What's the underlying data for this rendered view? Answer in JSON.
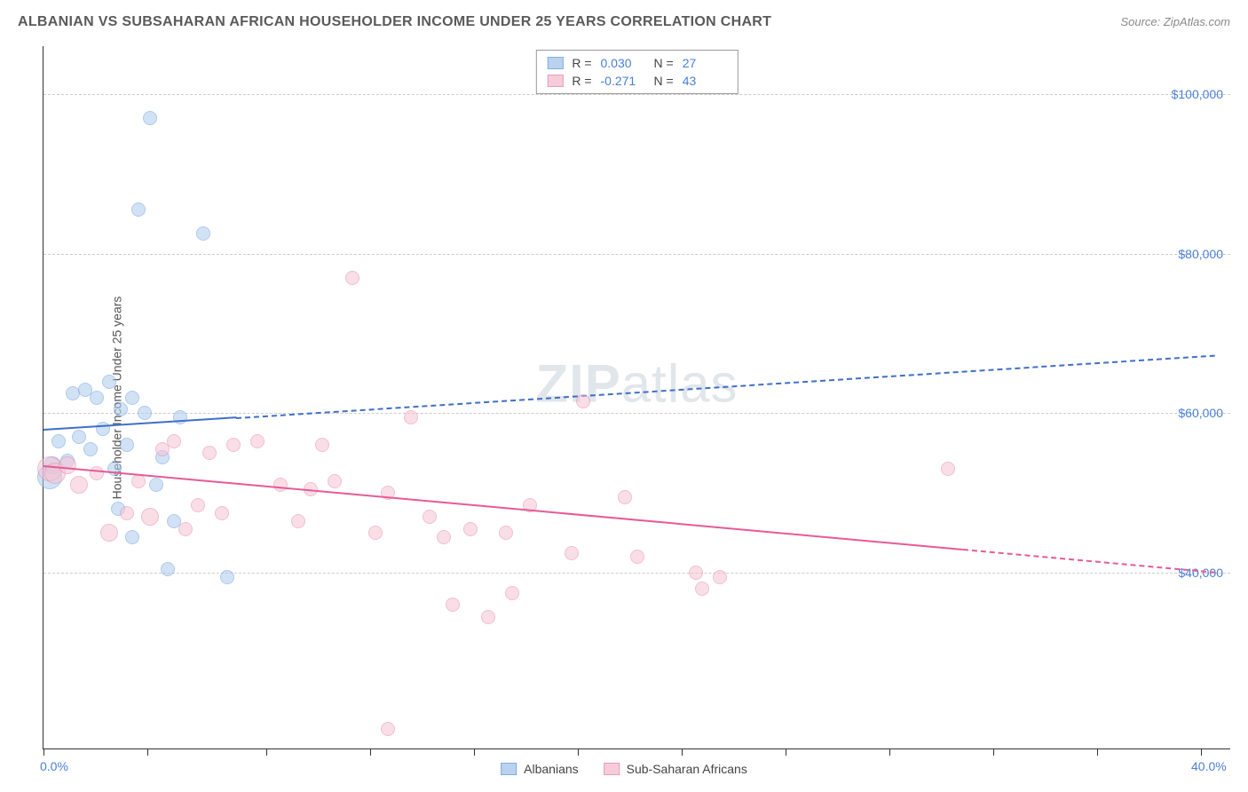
{
  "header": {
    "title": "ALBANIAN VS SUBSAHARAN AFRICAN HOUSEHOLDER INCOME UNDER 25 YEARS CORRELATION CHART",
    "source_label": "Source: ZipAtlas.com"
  },
  "chart": {
    "type": "scatter",
    "watermark_a": "ZIP",
    "watermark_b": "atlas",
    "y_axis_label": "Householder Income Under 25 years",
    "xlim": [
      0,
      40
    ],
    "x_limit_labels": {
      "min": "0.0%",
      "max": "40.0%"
    },
    "x_ticks_pct": [
      0,
      3.5,
      7.5,
      11,
      14.5,
      18,
      21.5,
      25,
      28.5,
      32,
      35.5,
      39
    ],
    "ylim": [
      18000,
      106000
    ],
    "y_ticks": [
      {
        "value": 40000,
        "label": "$40,000"
      },
      {
        "value": 60000,
        "label": "$60,000"
      },
      {
        "value": 80000,
        "label": "$80,000"
      },
      {
        "value": 100000,
        "label": "$100,000"
      }
    ],
    "grid_color": "#cccccc",
    "background_color": "#ffffff",
    "axis_color": "#333333",
    "series": [
      {
        "key": "albanians",
        "name": "Albanians",
        "R": "0.030",
        "N": "27",
        "fill": "#aecbed",
        "fill_opacity": 0.55,
        "stroke": "#6b9fe0",
        "line_color": "#3f6fc9",
        "solid_to_x": 6.5,
        "dash_to_x": 39.5,
        "trend_y_at_x0": 58000,
        "trend_y_at_xmax": 67500,
        "points": [
          {
            "x": 0.2,
            "y": 52000,
            "r": 14
          },
          {
            "x": 0.3,
            "y": 53500,
            "r": 10
          },
          {
            "x": 0.5,
            "y": 56500,
            "r": 8
          },
          {
            "x": 0.8,
            "y": 54000,
            "r": 8
          },
          {
            "x": 1.0,
            "y": 62500,
            "r": 8
          },
          {
            "x": 1.2,
            "y": 57000,
            "r": 8
          },
          {
            "x": 1.4,
            "y": 63000,
            "r": 8
          },
          {
            "x": 1.6,
            "y": 55500,
            "r": 8
          },
          {
            "x": 1.8,
            "y": 62000,
            "r": 8
          },
          {
            "x": 2.0,
            "y": 58000,
            "r": 8
          },
          {
            "x": 2.2,
            "y": 64000,
            "r": 8
          },
          {
            "x": 2.4,
            "y": 53000,
            "r": 8
          },
          {
            "x": 2.5,
            "y": 48000,
            "r": 8
          },
          {
            "x": 2.6,
            "y": 60500,
            "r": 8
          },
          {
            "x": 2.8,
            "y": 56000,
            "r": 8
          },
          {
            "x": 3.0,
            "y": 62000,
            "r": 8
          },
          {
            "x": 3.0,
            "y": 44500,
            "r": 8
          },
          {
            "x": 3.2,
            "y": 85500,
            "r": 8
          },
          {
            "x": 3.4,
            "y": 60000,
            "r": 8
          },
          {
            "x": 3.6,
            "y": 97000,
            "r": 8
          },
          {
            "x": 3.8,
            "y": 51000,
            "r": 8
          },
          {
            "x": 4.0,
            "y": 54500,
            "r": 8
          },
          {
            "x": 4.2,
            "y": 40500,
            "r": 8
          },
          {
            "x": 4.4,
            "y": 46500,
            "r": 8
          },
          {
            "x": 4.6,
            "y": 59500,
            "r": 8
          },
          {
            "x": 5.4,
            "y": 82500,
            "r": 8
          },
          {
            "x": 6.2,
            "y": 39500,
            "r": 8
          }
        ]
      },
      {
        "key": "ssa",
        "name": "Sub-Saharan Africans",
        "R": "-0.271",
        "N": "43",
        "fill": "#f6c4d3",
        "fill_opacity": 0.55,
        "stroke": "#e68ab0",
        "line_color": "#e75a97",
        "solid_to_x": 31,
        "dash_to_x": 39.5,
        "trend_y_at_x0": 53500,
        "trend_y_at_xmax": 40000,
        "points": [
          {
            "x": 0.2,
            "y": 53000,
            "r": 14
          },
          {
            "x": 0.4,
            "y": 52500,
            "r": 12
          },
          {
            "x": 0.8,
            "y": 53500,
            "r": 10
          },
          {
            "x": 1.2,
            "y": 51000,
            "r": 10
          },
          {
            "x": 1.8,
            "y": 52500,
            "r": 8
          },
          {
            "x": 2.2,
            "y": 45000,
            "r": 10
          },
          {
            "x": 2.8,
            "y": 47500,
            "r": 8
          },
          {
            "x": 3.2,
            "y": 51500,
            "r": 8
          },
          {
            "x": 3.6,
            "y": 47000,
            "r": 10
          },
          {
            "x": 4.0,
            "y": 55500,
            "r": 8
          },
          {
            "x": 4.4,
            "y": 56500,
            "r": 8
          },
          {
            "x": 4.8,
            "y": 45500,
            "r": 8
          },
          {
            "x": 5.2,
            "y": 48500,
            "r": 8
          },
          {
            "x": 5.6,
            "y": 55000,
            "r": 8
          },
          {
            "x": 6.0,
            "y": 47500,
            "r": 8
          },
          {
            "x": 6.4,
            "y": 56000,
            "r": 8
          },
          {
            "x": 7.2,
            "y": 56500,
            "r": 8
          },
          {
            "x": 8.0,
            "y": 51000,
            "r": 8
          },
          {
            "x": 8.6,
            "y": 46500,
            "r": 8
          },
          {
            "x": 9.0,
            "y": 50500,
            "r": 8
          },
          {
            "x": 9.4,
            "y": 56000,
            "r": 8
          },
          {
            "x": 9.8,
            "y": 51500,
            "r": 8
          },
          {
            "x": 10.4,
            "y": 77000,
            "r": 8
          },
          {
            "x": 11.2,
            "y": 45000,
            "r": 8
          },
          {
            "x": 11.6,
            "y": 50000,
            "r": 8
          },
          {
            "x": 11.6,
            "y": 20500,
            "r": 8
          },
          {
            "x": 12.4,
            "y": 59500,
            "r": 8
          },
          {
            "x": 13.0,
            "y": 47000,
            "r": 8
          },
          {
            "x": 13.5,
            "y": 44500,
            "r": 8
          },
          {
            "x": 13.8,
            "y": 36000,
            "r": 8
          },
          {
            "x": 14.4,
            "y": 45500,
            "r": 8
          },
          {
            "x": 15.0,
            "y": 34500,
            "r": 8
          },
          {
            "x": 15.6,
            "y": 45000,
            "r": 8
          },
          {
            "x": 15.8,
            "y": 37500,
            "r": 8
          },
          {
            "x": 16.4,
            "y": 48500,
            "r": 8
          },
          {
            "x": 17.8,
            "y": 42500,
            "r": 8
          },
          {
            "x": 18.2,
            "y": 61500,
            "r": 8
          },
          {
            "x": 19.6,
            "y": 49500,
            "r": 8
          },
          {
            "x": 20.0,
            "y": 42000,
            "r": 8
          },
          {
            "x": 22.0,
            "y": 40000,
            "r": 8
          },
          {
            "x": 22.2,
            "y": 38000,
            "r": 8
          },
          {
            "x": 22.8,
            "y": 39500,
            "r": 8
          },
          {
            "x": 30.5,
            "y": 53000,
            "r": 8
          }
        ]
      }
    ]
  },
  "legend_top": {
    "R_label": "R =",
    "N_label": "N ="
  }
}
